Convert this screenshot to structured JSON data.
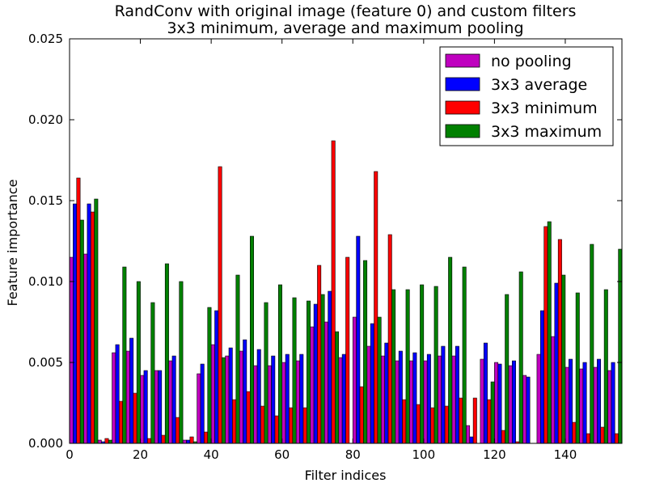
{
  "chart_data": {
    "type": "bar",
    "title": "RandConv with original image (feature 0) and custom filters",
    "subtitle": "3x3 minimum, average and maximum pooling",
    "xlabel": "Filter indices",
    "ylabel": "Feature importance",
    "xlim": [
      0,
      156
    ],
    "ylim": [
      0,
      0.025
    ],
    "xticks": [
      "0",
      "20",
      "40",
      "60",
      "80",
      "100",
      "120",
      "140"
    ],
    "yticks": [
      "0.000",
      "0.005",
      "0.010",
      "0.015",
      "0.020",
      "0.025"
    ],
    "grid": false,
    "legend_position": "top-right",
    "categories": [
      0,
      4,
      8,
      12,
      16,
      20,
      24,
      28,
      32,
      36,
      40,
      44,
      48,
      52,
      56,
      60,
      64,
      68,
      72,
      76,
      80,
      84,
      88,
      92,
      96,
      100,
      104,
      108,
      112,
      116,
      120,
      124,
      128,
      132,
      136,
      140,
      144,
      148,
      152
    ],
    "series": [
      {
        "name": "no pooling",
        "color": "#bf00bf",
        "values": [
          0.0115,
          0.0117,
          0.0002,
          0.0056,
          0.0057,
          0.0042,
          0.0045,
          0.0051,
          0.0002,
          0.0043,
          0.0061,
          0.0054,
          0.0057,
          0.0048,
          0.0048,
          0.005,
          0.0051,
          0.0072,
          0.0075,
          0.0053,
          0.0078,
          0.006,
          0.0054,
          0.0051,
          0.0051,
          0.0051,
          0.0054,
          0.0054,
          0.0011,
          0.0052,
          0.005,
          0.0048,
          0.0042,
          0.0055,
          0.0066,
          0.0047,
          0.0046,
          0.0047,
          0.0045
        ]
      },
      {
        "name": "3x3 average",
        "color": "#0000ff",
        "values": [
          0.0148,
          0.0148,
          0.0001,
          0.0061,
          0.0065,
          0.0045,
          0.0045,
          0.0054,
          0.0002,
          0.0049,
          0.0082,
          0.0059,
          0.0064,
          0.0058,
          0.0054,
          0.0055,
          0.0055,
          0.0086,
          0.0094,
          0.0055,
          0.0128,
          0.0074,
          0.0062,
          0.0057,
          0.0056,
          0.0055,
          0.006,
          0.006,
          0.0004,
          0.0062,
          0.0049,
          0.0051,
          0.0041,
          0.0082,
          0.0099,
          0.0052,
          0.005,
          0.0052,
          0.005
        ]
      },
      {
        "name": "3x3 minimum",
        "color": "#ff0000",
        "values": [
          0.0164,
          0.0143,
          0.0003,
          0.0026,
          0.0031,
          0.0003,
          0.0005,
          0.0016,
          0.0004,
          0.0007,
          0.0171,
          0.0027,
          0.0032,
          0.0023,
          0.0017,
          0.0022,
          0.0022,
          0.011,
          0.0187,
          0.0115,
          0.0035,
          0.0168,
          0.0129,
          0.0027,
          0.0024,
          0.0022,
          0.0023,
          0.0028,
          0.0028,
          0.0027,
          0.0008,
          0.0001,
          0.0,
          0.0134,
          0.0126,
          0.0013,
          0.0006,
          0.001,
          0.0006
        ]
      },
      {
        "name": "3x3 maximum",
        "color": "#008000",
        "values": [
          0.0138,
          0.0151,
          0.0002,
          0.0109,
          0.01,
          0.0087,
          0.0111,
          0.01,
          0.0001,
          0.0084,
          0.0053,
          0.0104,
          0.0128,
          0.0087,
          0.0098,
          0.009,
          0.0088,
          0.0092,
          0.0069,
          0.0,
          0.0113,
          0.0078,
          0.0095,
          0.0095,
          0.0098,
          0.0097,
          0.0115,
          0.0109,
          0.0,
          0.0038,
          0.0092,
          0.0106,
          0.0,
          0.0137,
          0.0104,
          0.0093,
          0.0123,
          0.0095,
          0.012
        ]
      }
    ]
  }
}
